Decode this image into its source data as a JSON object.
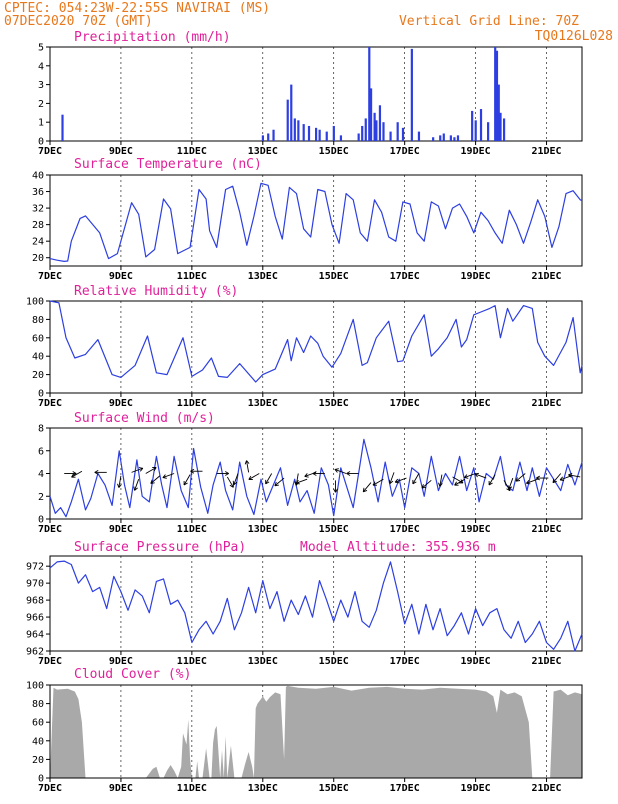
{
  "header": {
    "line1": "CPTEC:   054:23W-22:55S   NAVIRAI (MS)",
    "line2": "07DEC2020 70Z (GMT)",
    "right1": "Vertical Grid Line: 70Z",
    "right2": "TQ0126L028"
  },
  "colors": {
    "line": "#2d3fe0",
    "cloud": "#a9a9a9",
    "header": "#e8781c",
    "title": "#e0219a"
  },
  "chart_data": [
    {
      "type": "bar",
      "title": "Precipitation (mm/h)",
      "ylim": [
        0,
        5
      ],
      "yticks": [
        0,
        1,
        2,
        3,
        4,
        5
      ],
      "x_range_days": [
        7,
        22
      ],
      "xticks": [
        "7DEC",
        "9DEC",
        "11DEC",
        "13DEC",
        "15DEC",
        "17DEC",
        "19DEC",
        "21DEC"
      ],
      "x": [
        7.35,
        13.0,
        13.15,
        13.3,
        13.7,
        13.8,
        13.9,
        14.0,
        14.15,
        14.3,
        14.5,
        14.6,
        14.8,
        15.0,
        15.2,
        15.7,
        15.8,
        15.9,
        16.0,
        16.05,
        16.15,
        16.2,
        16.3,
        16.4,
        16.6,
        16.8,
        16.95,
        17.2,
        17.4,
        17.8,
        18.0,
        18.1,
        18.3,
        18.4,
        18.5,
        18.9,
        19.0,
        19.15,
        19.35,
        19.55,
        19.6,
        19.65,
        19.7,
        19.8
      ],
      "values": [
        1.4,
        0.3,
        0.4,
        0.6,
        2.2,
        3.0,
        1.2,
        1.1,
        0.9,
        0.8,
        0.7,
        0.6,
        0.5,
        0.8,
        0.3,
        0.4,
        0.8,
        1.2,
        5.0,
        2.8,
        1.5,
        1.1,
        1.9,
        1.0,
        0.5,
        1.0,
        0.7,
        4.9,
        0.5,
        0.2,
        0.3,
        0.4,
        0.3,
        0.2,
        0.3,
        1.6,
        1.1,
        1.7,
        1.0,
        5.0,
        4.8,
        3.0,
        1.5,
        1.2
      ]
    },
    {
      "type": "line",
      "title": "Surface Temperature (nC)",
      "ylim": [
        18,
        40
      ],
      "yticks": [
        20,
        24,
        28,
        32,
        36,
        40
      ],
      "x_range_days": [
        7,
        22
      ],
      "xticks": [
        "7DEC",
        "9DEC",
        "11DEC",
        "13DEC",
        "15DEC",
        "17DEC",
        "19DEC",
        "21DEC"
      ],
      "x": [
        7.0,
        7.2,
        7.4,
        7.5,
        7.6,
        7.85,
        8.0,
        8.4,
        8.65,
        8.9,
        9.3,
        9.5,
        9.7,
        9.95,
        10.2,
        10.4,
        10.6,
        10.95,
        11.2,
        11.4,
        11.5,
        11.7,
        11.95,
        12.15,
        12.35,
        12.55,
        12.75,
        12.95,
        13.15,
        13.35,
        13.55,
        13.75,
        13.95,
        14.15,
        14.35,
        14.55,
        14.75,
        14.95,
        15.15,
        15.35,
        15.55,
        15.75,
        15.95,
        16.15,
        16.35,
        16.55,
        16.75,
        16.95,
        17.15,
        17.35,
        17.55,
        17.75,
        17.95,
        18.15,
        18.35,
        18.55,
        18.75,
        18.95,
        19.15,
        19.35,
        19.55,
        19.75,
        19.95,
        20.15,
        20.35,
        20.55,
        20.75,
        20.95,
        21.15,
        21.35,
        21.55,
        21.75,
        21.95,
        22.0
      ],
      "values": [
        19.8,
        19.4,
        19.1,
        19.2,
        24.0,
        29.5,
        30.1,
        26.0,
        19.8,
        21.0,
        33.3,
        30.5,
        20.2,
        22.0,
        34.2,
        31.8,
        21.0,
        22.5,
        36.5,
        34.2,
        26.5,
        22.5,
        36.5,
        37.3,
        31.0,
        23.0,
        30.0,
        38.0,
        37.5,
        30.0,
        24.5,
        37.0,
        35.5,
        27.0,
        25.0,
        36.5,
        36.0,
        28.0,
        23.5,
        35.5,
        34.0,
        26.0,
        24.0,
        34.0,
        31.0,
        25.0,
        24.0,
        33.5,
        33.0,
        26.0,
        24.0,
        33.5,
        32.5,
        27.0,
        32.0,
        33.0,
        30.0,
        26.0,
        31.0,
        29.0,
        26.0,
        23.5,
        31.5,
        28.0,
        23.5,
        28.5,
        34.0,
        30.0,
        22.5,
        27.5,
        35.5,
        36.2,
        34.0,
        33.8
      ]
    },
    {
      "type": "line",
      "title": "Relative Humidity (%)",
      "ylim": [
        0,
        100
      ],
      "yticks": [
        0,
        20,
        40,
        60,
        80,
        100
      ],
      "x_range_days": [
        7,
        22
      ],
      "xticks": [
        "7DEC",
        "9DEC",
        "11DEC",
        "13DEC",
        "15DEC",
        "17DEC",
        "19DEC",
        "21DEC"
      ],
      "x": [
        7.0,
        7.25,
        7.45,
        7.7,
        8.0,
        8.35,
        8.75,
        9.0,
        9.4,
        9.75,
        10.0,
        10.3,
        10.75,
        11.0,
        11.3,
        11.55,
        11.75,
        12.0,
        12.35,
        12.8,
        13.0,
        13.35,
        13.7,
        13.8,
        13.95,
        14.15,
        14.35,
        14.55,
        14.7,
        14.95,
        15.2,
        15.55,
        15.8,
        15.95,
        16.2,
        16.55,
        16.8,
        16.95,
        17.2,
        17.55,
        17.75,
        17.95,
        18.2,
        18.45,
        18.6,
        18.75,
        18.95,
        19.15,
        19.4,
        19.55,
        19.7,
        19.9,
        20.05,
        20.35,
        20.6,
        20.75,
        20.95,
        21.2,
        21.55,
        21.75,
        21.95,
        22.0
      ],
      "values": [
        100.0,
        98.0,
        60.0,
        38.0,
        42.0,
        58.0,
        20.0,
        17.0,
        30.0,
        62.0,
        22.0,
        20.0,
        60.0,
        18.0,
        25.0,
        38.0,
        18.0,
        17.0,
        32.0,
        12.0,
        20.0,
        26.0,
        58.0,
        35.0,
        60.0,
        44.0,
        62.0,
        54.0,
        40.0,
        28.0,
        43.0,
        80.0,
        30.0,
        33.0,
        60.0,
        78.0,
        34.0,
        35.0,
        62.0,
        85.0,
        40.0,
        48.0,
        60.0,
        80.0,
        50.0,
        58.0,
        85.0,
        88.0,
        92.0,
        95.0,
        60.0,
        92.0,
        78.0,
        95.0,
        92.0,
        55.0,
        40.0,
        30.0,
        55.0,
        82.0,
        22.0,
        30.0
      ]
    },
    {
      "type": "line",
      "title": "Surface Wind (m/s)",
      "ylim": [
        0,
        8
      ],
      "yticks": [
        0,
        2,
        4,
        6,
        8
      ],
      "x_range_days": [
        7,
        22
      ],
      "xticks": [
        "7DEC",
        "9DEC",
        "11DEC",
        "13DEC",
        "15DEC",
        "17DEC",
        "19DEC",
        "21DEC"
      ],
      "x": [
        7.0,
        7.15,
        7.3,
        7.45,
        7.6,
        7.8,
        8.0,
        8.15,
        8.35,
        8.55,
        8.75,
        8.95,
        9.1,
        9.25,
        9.45,
        9.6,
        9.8,
        10.0,
        10.15,
        10.3,
        10.5,
        10.7,
        10.9,
        11.05,
        11.25,
        11.45,
        11.6,
        11.8,
        11.95,
        12.15,
        12.35,
        12.55,
        12.75,
        12.95,
        13.1,
        13.3,
        13.5,
        13.7,
        13.9,
        14.05,
        14.25,
        14.45,
        14.65,
        14.85,
        15.0,
        15.2,
        15.4,
        15.55,
        15.7,
        15.85,
        16.05,
        16.25,
        16.45,
        16.65,
        16.85,
        17.0,
        17.2,
        17.4,
        17.55,
        17.75,
        17.95,
        18.15,
        18.35,
        18.55,
        18.75,
        18.95,
        19.1,
        19.3,
        19.5,
        19.7,
        19.85,
        20.05,
        20.25,
        20.45,
        20.6,
        20.8,
        21.0,
        21.2,
        21.4,
        21.6,
        21.8,
        22.0
      ],
      "values": [
        2.0,
        0.5,
        1.0,
        0.2,
        1.5,
        3.5,
        0.8,
        1.8,
        4.0,
        3.0,
        1.2,
        6.0,
        3.0,
        1.0,
        5.2,
        2.0,
        1.5,
        5.5,
        3.0,
        1.0,
        5.5,
        2.5,
        1.0,
        6.2,
        2.8,
        0.5,
        3.0,
        5.0,
        2.5,
        0.8,
        5.0,
        2.0,
        0.4,
        3.5,
        1.5,
        3.0,
        4.5,
        1.2,
        3.5,
        1.5,
        2.5,
        0.5,
        4.5,
        3.0,
        0.3,
        4.5,
        2.5,
        1.0,
        4.0,
        7.0,
        4.5,
        1.5,
        5.0,
        2.0,
        3.5,
        1.0,
        4.5,
        4.0,
        2.0,
        5.5,
        2.5,
        4.0,
        3.0,
        5.5,
        2.5,
        4.5,
        1.5,
        4.0,
        3.5,
        5.5,
        3.0,
        2.5,
        5.0,
        2.5,
        4.5,
        2.0,
        4.5,
        3.5,
        2.5,
        4.8,
        3.0,
        5.0
      ],
      "arrow_x": [
        7.4,
        7.9,
        8.6,
        9.0,
        9.3,
        9.5,
        9.7,
        10.1,
        10.5,
        10.95,
        11.3,
        11.7,
        12.0,
        12.3,
        12.6,
        12.9,
        13.25,
        13.6,
        14.0,
        14.25,
        14.5,
        14.75,
        15.05,
        15.35,
        15.7,
        16.05,
        16.4,
        16.7,
        17.05,
        17.4,
        17.75,
        18.05,
        18.35,
        18.7,
        19.0,
        19.3,
        19.55,
        19.8,
        20.05,
        20.4,
        20.75,
        21.05,
        21.4,
        21.7,
        21.95
      ],
      "arrow_angle_deg": [
        0,
        210,
        180,
        260,
        20,
        250,
        30,
        220,
        200,
        240,
        180,
        0,
        300,
        250,
        100,
        210,
        240,
        220,
        260,
        200,
        200,
        180,
        270,
        160,
        180,
        230,
        210,
        250,
        200,
        240,
        220,
        260,
        330,
        210,
        200,
        160,
        240,
        300,
        250,
        220,
        200,
        180,
        230,
        200,
        170
      ],
      "arrow_level": [
        4.0,
        4.2,
        4.1,
        3.8,
        4.1,
        3.5,
        4.0,
        3.8,
        4.0,
        3.9,
        4.2,
        4.0,
        3.7,
        4.0,
        4.1,
        4.0,
        4.0,
        3.6,
        4.0,
        3.5,
        4.1,
        4.0,
        3.4,
        4.0,
        4.0,
        3.2,
        3.5,
        4.1,
        3.6,
        4.0,
        3.4,
        3.9,
        3.7,
        3.5,
        4.0,
        3.6,
        3.9,
        3.4,
        3.6,
        4.0,
        3.5,
        3.6,
        4.0,
        3.8,
        3.7
      ]
    },
    {
      "type": "line",
      "title": "Surface Pressure (hPa)",
      "annotation": "Model Altitude: 355.936 m",
      "ylim": [
        962,
        973.2
      ],
      "yticks": [
        962,
        964,
        966,
        968,
        970,
        972
      ],
      "x_range_days": [
        7,
        22
      ],
      "xticks": [
        "7DEC",
        "9DEC",
        "11DEC",
        "13DEC",
        "15DEC",
        "17DEC",
        "19DEC",
        "21DEC"
      ],
      "x": [
        7.0,
        7.2,
        7.4,
        7.6,
        7.8,
        8.0,
        8.2,
        8.4,
        8.6,
        8.8,
        9.0,
        9.2,
        9.4,
        9.6,
        9.8,
        10.0,
        10.2,
        10.4,
        10.6,
        10.8,
        11.0,
        11.2,
        11.4,
        11.6,
        11.8,
        12.0,
        12.2,
        12.4,
        12.6,
        12.8,
        13.0,
        13.2,
        13.4,
        13.6,
        13.8,
        14.0,
        14.2,
        14.4,
        14.6,
        14.8,
        15.0,
        15.2,
        15.4,
        15.6,
        15.8,
        16.0,
        16.2,
        16.4,
        16.6,
        16.8,
        17.0,
        17.2,
        17.4,
        17.6,
        17.8,
        18.0,
        18.2,
        18.4,
        18.6,
        18.8,
        19.0,
        19.2,
        19.4,
        19.6,
        19.8,
        20.0,
        20.2,
        20.4,
        20.6,
        20.8,
        21.0,
        21.2,
        21.4,
        21.6,
        21.8,
        22.0
      ],
      "values": [
        971.8,
        972.5,
        972.6,
        972.2,
        970.0,
        971.0,
        969.0,
        969.5,
        967.0,
        970.8,
        969.0,
        966.8,
        969.2,
        968.5,
        966.5,
        970.2,
        970.5,
        967.5,
        968.0,
        966.5,
        963.0,
        964.5,
        965.5,
        964.0,
        965.5,
        968.2,
        964.5,
        966.5,
        969.5,
        966.5,
        970.3,
        967.0,
        969.0,
        965.5,
        968.0,
        966.3,
        968.5,
        966.0,
        970.3,
        968.0,
        965.5,
        968.0,
        966.0,
        969.0,
        965.5,
        964.8,
        966.8,
        970.0,
        972.5,
        969.0,
        965.2,
        967.5,
        964.0,
        967.5,
        964.5,
        967.0,
        963.8,
        965.0,
        966.5,
        964.0,
        967.0,
        965.0,
        966.5,
        967.0,
        964.5,
        963.5,
        965.5,
        963.0,
        964.0,
        965.5,
        963.0,
        962.2,
        963.5,
        965.5,
        962.0,
        964.0
      ]
    },
    {
      "type": "area",
      "title": "Cloud Cover (%)",
      "ylim": [
        0,
        100
      ],
      "yticks": [
        0,
        20,
        40,
        60,
        80,
        100
      ],
      "x_range_days": [
        7,
        22
      ],
      "xticks": [
        "7DEC",
        "9DEC",
        "11DEC",
        "13DEC",
        "15DEC",
        "17DEC",
        "19DEC",
        "21DEC"
      ],
      "x": [
        7.0,
        7.1,
        7.2,
        7.5,
        7.7,
        7.8,
        7.9,
        8.0,
        8.6,
        9.0,
        9.5,
        9.7,
        9.9,
        10.0,
        10.1,
        10.2,
        10.3,
        10.4,
        10.5,
        10.6,
        10.7,
        10.75,
        10.85,
        10.9,
        10.95,
        11.0,
        11.1,
        11.15,
        11.2,
        11.3,
        11.4,
        11.5,
        11.55,
        11.6,
        11.65,
        11.7,
        11.8,
        11.85,
        11.9,
        11.95,
        12.0,
        12.1,
        12.2,
        12.4,
        12.5,
        12.6,
        12.7,
        12.75,
        12.8,
        12.85,
        12.95,
        13.0,
        13.1,
        13.2,
        13.35,
        13.5,
        13.6,
        13.65,
        13.7,
        14.0,
        14.5,
        15.0,
        15.5,
        16.0,
        16.5,
        17.0,
        17.5,
        18.0,
        18.5,
        19.0,
        19.3,
        19.5,
        19.6,
        19.7,
        19.9,
        20.1,
        20.3,
        20.5,
        20.6,
        20.7,
        20.8,
        20.9,
        21.0,
        21.1,
        21.2,
        21.4,
        21.6,
        21.8,
        22.0
      ],
      "values": [
        0.0,
        97.0,
        95.0,
        96.0,
        93.0,
        85.0,
        60.0,
        0.0,
        0.0,
        0.0,
        0.0,
        0.0,
        10.0,
        12.0,
        0.0,
        0.0,
        8.0,
        14.0,
        8.0,
        0.0,
        12.0,
        48.0,
        36.0,
        63.0,
        20.0,
        0.0,
        0.0,
        18.0,
        0.0,
        0.0,
        32.0,
        0.0,
        0.0,
        38.0,
        52.0,
        56.0,
        0.0,
        30.0,
        0.0,
        45.0,
        0.0,
        35.0,
        0.0,
        0.0,
        15.0,
        28.0,
        12.0,
        0.0,
        75.0,
        80.0,
        85.0,
        88.0,
        82.0,
        87.0,
        92.0,
        90.0,
        20.0,
        98.0,
        99.0,
        97.0,
        96.0,
        98.0,
        94.0,
        97.0,
        98.0,
        96.0,
        95.0,
        97.0,
        96.0,
        95.0,
        93.0,
        88.0,
        70.0,
        95.0,
        90.0,
        92.0,
        88.0,
        60.0,
        0.0,
        0.0,
        0.0,
        0.0,
        0.0,
        0.0,
        93.0,
        95.0,
        89.0,
        92.0,
        90.0
      ]
    }
  ]
}
